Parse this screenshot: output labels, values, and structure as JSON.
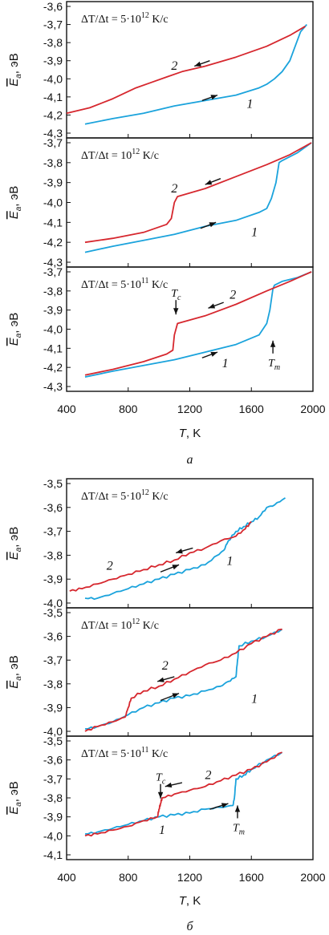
{
  "chart_data": [
    {
      "type": "line",
      "caption": "а",
      "xlabel": "T, K",
      "xlim": [
        400,
        2000
      ],
      "x_ticks": [
        "400",
        "800",
        "1200",
        "1600",
        "2000"
      ],
      "ylabel": "E_a, эВ",
      "panels": [
        {
          "rate_prefix": "ΔT/Δt = 5·10",
          "rate_exp": "12",
          "rate_unit": " K/c",
          "ylim": [
            -4.3,
            -3.6
          ],
          "y_ticks": [
            "-4,3",
            "-4,2",
            "-4,1",
            "-4,0",
            "-3,9",
            "-3,8",
            "-3,7",
            "-3,6"
          ],
          "labels": {
            "heating": "1",
            "cooling": "2"
          },
          "series": [
            {
              "name": "1",
              "color": "#1ba3dc",
              "x": [
                520,
                700,
                900,
                1100,
                1300,
                1500,
                1650,
                1700,
                1750,
                1800,
                1850,
                1880,
                1920,
                1960
              ],
              "y": [
                -4.25,
                -4.22,
                -4.19,
                -4.15,
                -4.12,
                -4.09,
                -4.05,
                -4.03,
                -4.0,
                -3.96,
                -3.9,
                -3.83,
                -3.74,
                -3.7
              ]
            },
            {
              "name": "2",
              "color": "#d6272e",
              "x": [
                400,
                550,
                700,
                850,
                950,
                1050,
                1150,
                1300,
                1500,
                1700,
                1850,
                1950
              ],
              "y": [
                -4.19,
                -4.16,
                -4.11,
                -4.05,
                -4.02,
                -3.99,
                -3.96,
                -3.93,
                -3.88,
                -3.82,
                -3.76,
                -3.71
              ]
            }
          ]
        },
        {
          "rate_prefix": "ΔT/Δt = 10",
          "rate_exp": "12",
          "rate_unit": " K/c",
          "ylim": [
            -4.3,
            -3.7
          ],
          "y_ticks": [
            "-4,3",
            "-4,2",
            "-4,1",
            "-4,0",
            "-3,9",
            "-3,8",
            "-3,7"
          ],
          "labels": {
            "heating": "1",
            "cooling": "2"
          },
          "series": [
            {
              "name": "1",
              "color": "#1ba3dc",
              "x": [
                520,
                700,
                900,
                1100,
                1300,
                1500,
                1650,
                1700,
                1730,
                1760,
                1780,
                1800,
                1900,
                1990
              ],
              "y": [
                -4.25,
                -4.22,
                -4.19,
                -4.16,
                -4.12,
                -4.09,
                -4.05,
                -4.03,
                -3.98,
                -3.9,
                -3.8,
                -3.79,
                -3.75,
                -3.7
              ]
            },
            {
              "name": "2",
              "color": "#d6272e",
              "x": [
                520,
                700,
                900,
                1050,
                1080,
                1100,
                1120,
                1300,
                1500,
                1700,
                1850,
                1990
              ],
              "y": [
                -4.2,
                -4.18,
                -4.15,
                -4.11,
                -4.08,
                -4.0,
                -3.97,
                -3.93,
                -3.87,
                -3.81,
                -3.76,
                -3.7
              ]
            }
          ]
        },
        {
          "rate_prefix": "ΔT/Δt = 5·10",
          "rate_exp": "11",
          "rate_unit": " K/c",
          "ylim": [
            -4.3,
            -3.7
          ],
          "y_ticks": [
            "-4,3",
            "-4,2",
            "-4,1",
            "-4,0",
            "-3,9",
            "-3,8",
            "-3,7"
          ],
          "labels": {
            "heating": "1",
            "cooling": "2",
            "tc": "T_c",
            "tm": "T_m"
          },
          "series": [
            {
              "name": "1",
              "color": "#1ba3dc",
              "x": [
                520,
                700,
                900,
                1100,
                1300,
                1500,
                1650,
                1700,
                1720,
                1740,
                1750,
                1800,
                1900,
                1990
              ],
              "y": [
                -4.25,
                -4.22,
                -4.19,
                -4.16,
                -4.12,
                -4.08,
                -4.03,
                -3.97,
                -3.9,
                -3.79,
                -3.77,
                -3.75,
                -3.73,
                -3.7
              ]
            },
            {
              "name": "2",
              "color": "#d6272e",
              "x": [
                520,
                700,
                900,
                1050,
                1090,
                1100,
                1120,
                1300,
                1500,
                1700,
                1850,
                1990
              ],
              "y": [
                -4.24,
                -4.21,
                -4.17,
                -4.13,
                -4.11,
                -4.03,
                -3.97,
                -3.93,
                -3.87,
                -3.8,
                -3.75,
                -3.7
              ]
            }
          ]
        }
      ]
    },
    {
      "type": "line",
      "caption": "б",
      "xlabel": "T, K",
      "xlim": [
        400,
        2000
      ],
      "x_ticks": [
        "400",
        "800",
        "1200",
        "1600",
        "2000"
      ],
      "ylabel": "E_a, эВ",
      "panels": [
        {
          "rate_prefix": "ΔT/Δt = 5·10",
          "rate_exp": "12",
          "rate_unit": " K/c",
          "ylim": [
            -4.0,
            -3.5
          ],
          "y_ticks": [
            "-4,0",
            "-3,9",
            "-3,8",
            "-3,7",
            "-3,6",
            "-3,5"
          ],
          "labels": {
            "heating": "1",
            "cooling": "2"
          },
          "series": [
            {
              "name": "1",
              "color": "#1ba3dc",
              "x": [
                520,
                600,
                700,
                800,
                900,
                1000,
                1100,
                1200,
                1300,
                1380,
                1420,
                1450,
                1500,
                1550,
                1600,
                1650,
                1700,
                1750,
                1820
              ],
              "y": [
                -3.98,
                -3.98,
                -3.96,
                -3.94,
                -3.92,
                -3.9,
                -3.88,
                -3.86,
                -3.84,
                -3.8,
                -3.78,
                -3.74,
                -3.7,
                -3.68,
                -3.66,
                -3.64,
                -3.6,
                -3.59,
                -3.56
              ]
            },
            {
              "name": "2",
              "color": "#d6272e",
              "x": [
                420,
                500,
                600,
                700,
                800,
                900,
                1000,
                1100,
                1200,
                1300,
                1400,
                1500,
                1560,
                1600
              ],
              "y": [
                -3.95,
                -3.94,
                -3.92,
                -3.9,
                -3.88,
                -3.86,
                -3.84,
                -3.82,
                -3.79,
                -3.77,
                -3.74,
                -3.72,
                -3.69,
                -3.66
              ]
            }
          ]
        },
        {
          "rate_prefix": "ΔT/Δt = 10",
          "rate_exp": "12",
          "rate_unit": " K/c",
          "ylim": [
            -4.0,
            -3.5
          ],
          "y_ticks": [
            "-4,0",
            "-3,9",
            "-3,8",
            "-3,7",
            "-3,6",
            "-3,5"
          ],
          "labels": {
            "heating": "1",
            "cooling": "2"
          },
          "series": [
            {
              "name": "1",
              "color": "#1ba3dc",
              "x": [
                520,
                600,
                700,
                800,
                900,
                1000,
                1100,
                1200,
                1300,
                1400,
                1450,
                1500,
                1510,
                1520,
                1600,
                1700,
                1800
              ],
              "y": [
                -3.99,
                -3.98,
                -3.96,
                -3.93,
                -3.9,
                -3.88,
                -3.86,
                -3.85,
                -3.83,
                -3.81,
                -3.79,
                -3.77,
                -3.7,
                -3.64,
                -3.62,
                -3.6,
                -3.57
              ]
            },
            {
              "name": "2",
              "color": "#d6272e",
              "x": [
                520,
                600,
                700,
                780,
                800,
                820,
                900,
                1000,
                1100,
                1200,
                1300,
                1400,
                1500,
                1600,
                1700,
                1800
              ],
              "y": [
                -4.0,
                -3.98,
                -3.96,
                -3.94,
                -3.9,
                -3.86,
                -3.83,
                -3.81,
                -3.78,
                -3.75,
                -3.72,
                -3.7,
                -3.67,
                -3.63,
                -3.6,
                -3.57
              ]
            }
          ]
        },
        {
          "rate_prefix": "ΔT/Δt = 5·10",
          "rate_exp": "11",
          "rate_unit": " K/c",
          "ylim": [
            -4.1,
            -3.5
          ],
          "y_ticks": [
            "-4,1",
            "-4,0",
            "-3,9",
            "-3,8",
            "-3,7",
            "-3,6",
            "-3,5"
          ],
          "labels": {
            "heating": "1",
            "cooling": "2",
            "tc": "T_c",
            "tm": "T_m"
          },
          "series": [
            {
              "name": "1",
              "color": "#1ba3dc",
              "x": [
                520,
                600,
                700,
                800,
                900,
                1000,
                1100,
                1200,
                1300,
                1400,
                1480,
                1490,
                1500,
                1550,
                1600,
                1700,
                1800
              ],
              "y": [
                -3.99,
                -3.98,
                -3.96,
                -3.94,
                -3.92,
                -3.9,
                -3.89,
                -3.88,
                -3.86,
                -3.85,
                -3.84,
                -3.8,
                -3.7,
                -3.68,
                -3.65,
                -3.6,
                -3.56
              ]
            },
            {
              "name": "2",
              "color": "#d6272e",
              "x": [
                520,
                600,
                700,
                800,
                900,
                990,
                1000,
                1010,
                1020,
                1100,
                1200,
                1300,
                1400,
                1500,
                1600,
                1700,
                1800
              ],
              "y": [
                -4.0,
                -3.99,
                -3.97,
                -3.95,
                -3.92,
                -3.9,
                -3.86,
                -3.83,
                -3.8,
                -3.78,
                -3.76,
                -3.74,
                -3.71,
                -3.68,
                -3.65,
                -3.61,
                -3.56
              ]
            }
          ]
        }
      ]
    }
  ]
}
